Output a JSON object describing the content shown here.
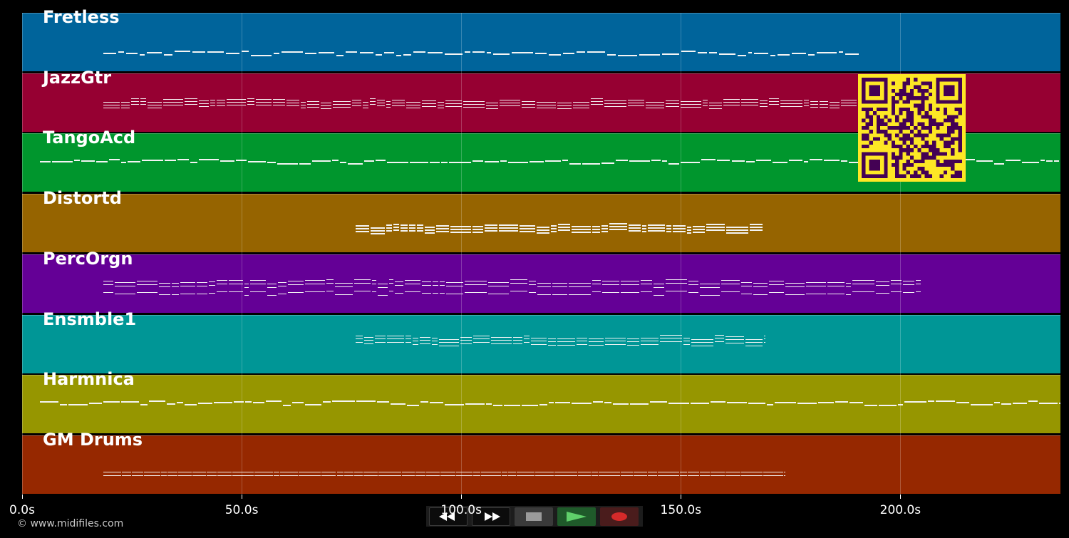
{
  "app": {
    "copyright": "© www.midifiles.com"
  },
  "timeline": {
    "ticks": [
      {
        "label": "0.0s",
        "seconds": 0
      },
      {
        "label": "50.0s",
        "seconds": 50
      },
      {
        "label": "100.0s",
        "seconds": 100
      },
      {
        "label": "150.0s",
        "seconds": 150
      },
      {
        "label": "200.0s",
        "seconds": 200
      }
    ],
    "max_seconds": 236.5
  },
  "tracks": [
    {
      "name": "Fretless",
      "color": "#00649b",
      "start": 18.5,
      "end": 191,
      "pattern": "bass"
    },
    {
      "name": "JazzGtr",
      "color": "#960032",
      "start": 18.5,
      "end": 191,
      "pattern": "chords"
    },
    {
      "name": "TangoAcd",
      "color": "#00962d",
      "start": 4,
      "end": 236.5,
      "pattern": "melody"
    },
    {
      "name": "Distortd",
      "color": "#966400",
      "start": 76,
      "end": 169,
      "pattern": "stacked"
    },
    {
      "name": "PercOrgn",
      "color": "#640096",
      "start": 18.5,
      "end": 205,
      "pattern": "double"
    },
    {
      "name": "Ensmble1",
      "color": "#009696",
      "start": 76,
      "end": 169,
      "pattern": "strings"
    },
    {
      "name": "Harmnica",
      "color": "#969600",
      "start": 4,
      "end": 236.5,
      "pattern": "melody"
    },
    {
      "name": "GM Drums",
      "color": "#962800",
      "start": 18.5,
      "end": 173.5,
      "pattern": "drums"
    }
  ],
  "transport": {
    "rewind": "rewind-icon",
    "fast_forward": "fast-forward-icon",
    "stop": "stop-icon",
    "play": "play-icon",
    "record": "record-icon"
  },
  "qr_code": {
    "colors": {
      "fg": "#440154",
      "bg": "#fde725"
    }
  }
}
